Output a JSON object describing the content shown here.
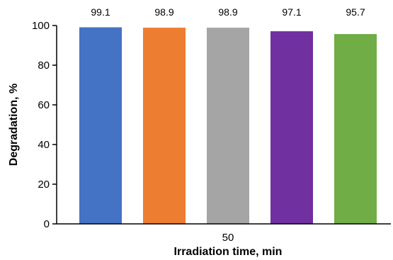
{
  "chart_data": {
    "type": "bar",
    "title": "",
    "xlabel": "Irradiation time, min",
    "ylabel": "Degradation, %",
    "ylim": [
      0,
      100
    ],
    "y_ticks": [
      "0",
      "20",
      "40",
      "60",
      "80",
      "100"
    ],
    "categories": [
      "50"
    ],
    "series": [
      {
        "values": [
          99.1
        ],
        "color": "#4472C4",
        "label": "99.1"
      },
      {
        "values": [
          98.9
        ],
        "color": "#ED7D31",
        "label": "98.9"
      },
      {
        "values": [
          98.9
        ],
        "color": "#A5A5A5",
        "label": "98.9"
      },
      {
        "values": [
          97.1
        ],
        "color": "#7030A0",
        "label": "97.1"
      },
      {
        "values": [
          95.7
        ],
        "color": "#70AD47",
        "label": "95.7"
      }
    ],
    "grid": false,
    "legend": "none"
  }
}
